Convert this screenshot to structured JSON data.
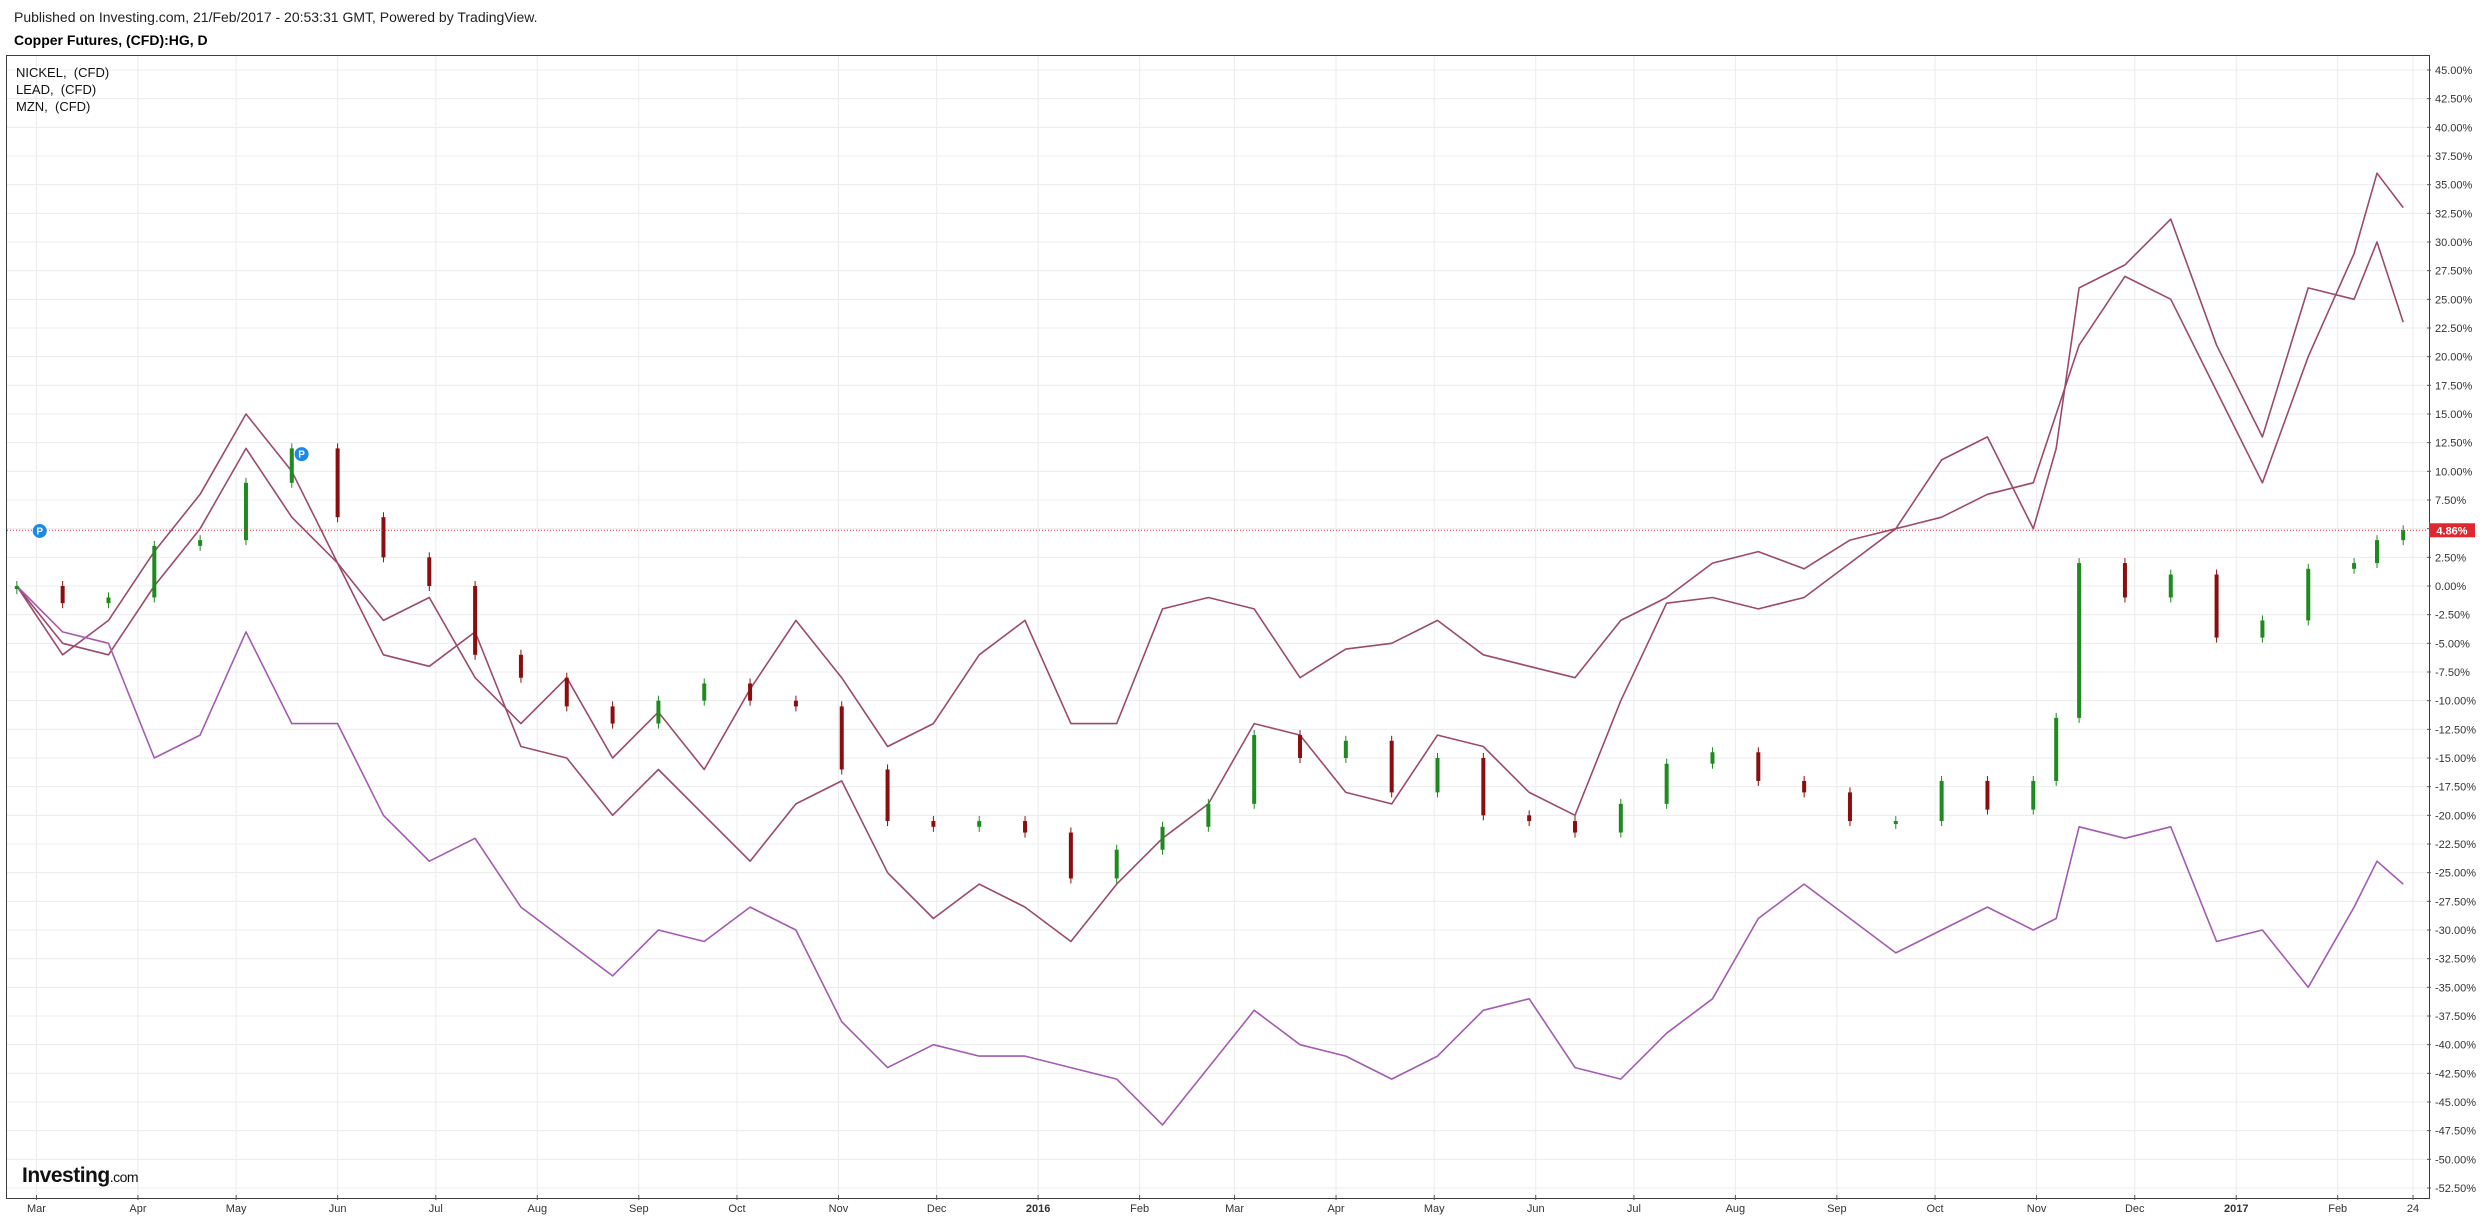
{
  "header": {
    "published": "Published on Investing.com, 21/Feb/2017 - 20:53:31 GMT, Powered by TradingView.",
    "symbol": "Copper Futures, (CFD):HG, D"
  },
  "legend": [
    "NICKEL,  (CFD)",
    "LEAD,  (CFD)",
    "MZN,  (CFD)"
  ],
  "logo": {
    "main": "Investing",
    "suffix": ".com"
  },
  "colors": {
    "nickel": "#9b4a6c",
    "lead": "#9b4a6c",
    "mzn": "#a35bb1",
    "candle_up": "#1f8a1f",
    "candle_down": "#8b0d0d",
    "price_line": "#e0262f",
    "grid": "#ececec"
  },
  "markers": [
    {
      "label": "P",
      "date": "2015-03-02",
      "value": 4.8
    },
    {
      "label": "P",
      "date": "2015-05-21",
      "value": 11.5
    }
  ],
  "chart_data": {
    "type": "line",
    "title": "Copper Futures, (CFD):HG, D",
    "y_unit": "%",
    "ylim": [
      -52.5,
      45.0
    ],
    "y_ticks": [
      "45.00%",
      "42.50%",
      "40.00%",
      "37.50%",
      "35.00%",
      "32.50%",
      "30.00%",
      "27.50%",
      "25.00%",
      "22.50%",
      "20.00%",
      "17.50%",
      "15.00%",
      "12.50%",
      "10.00%",
      "7.50%",
      "5.00%",
      "2.50%",
      "0.00%",
      "-2.50%",
      "-5.00%",
      "-7.50%",
      "-10.00%",
      "-12.50%",
      "-15.00%",
      "-17.50%",
      "-20.00%",
      "-22.50%",
      "-25.00%",
      "-27.50%",
      "-30.00%",
      "-32.50%",
      "-35.00%",
      "-37.50%",
      "-40.00%",
      "-42.50%",
      "-45.00%",
      "-47.50%",
      "-50.00%",
      "-52.50%"
    ],
    "x_ticks": [
      {
        "label": "Mar",
        "date": "2015-03-01"
      },
      {
        "label": "Apr",
        "date": "2015-04-01"
      },
      {
        "label": "May",
        "date": "2015-05-01"
      },
      {
        "label": "Jun",
        "date": "2015-06-01"
      },
      {
        "label": "Jul",
        "date": "2015-07-01"
      },
      {
        "label": "Aug",
        "date": "2015-08-01"
      },
      {
        "label": "Sep",
        "date": "2015-09-01"
      },
      {
        "label": "Oct",
        "date": "2015-10-01"
      },
      {
        "label": "Nov",
        "date": "2015-11-01"
      },
      {
        "label": "Dec",
        "date": "2015-12-01"
      },
      {
        "label": "2016",
        "date": "2016-01-01",
        "bold": true
      },
      {
        "label": "Feb",
        "date": "2016-02-01"
      },
      {
        "label": "Mar",
        "date": "2016-03-01"
      },
      {
        "label": "Apr",
        "date": "2016-04-01"
      },
      {
        "label": "May",
        "date": "2016-05-01"
      },
      {
        "label": "Jun",
        "date": "2016-06-01"
      },
      {
        "label": "Jul",
        "date": "2016-07-01"
      },
      {
        "label": "Aug",
        "date": "2016-08-01"
      },
      {
        "label": "Sep",
        "date": "2016-09-01"
      },
      {
        "label": "Oct",
        "date": "2016-10-01"
      },
      {
        "label": "Nov",
        "date": "2016-11-01"
      },
      {
        "label": "Dec",
        "date": "2016-12-01"
      },
      {
        "label": "2017",
        "date": "2017-01-01",
        "bold": true
      },
      {
        "label": "Feb",
        "date": "2017-02-01"
      },
      {
        "label": "24",
        "date": "2017-02-24"
      }
    ],
    "last_value_label": "4.86%",
    "last_value": 4.86,
    "grid": true,
    "legend_position": "top-left",
    "candles": {
      "name": "Copper Futures, (CFD):HG, D",
      "dates": [
        "2015-02-23",
        "2015-03-09",
        "2015-03-23",
        "2015-04-06",
        "2015-04-20",
        "2015-05-04",
        "2015-05-18",
        "2015-06-01",
        "2015-06-15",
        "2015-06-29",
        "2015-07-13",
        "2015-07-27",
        "2015-08-10",
        "2015-08-24",
        "2015-09-07",
        "2015-09-21",
        "2015-10-05",
        "2015-10-19",
        "2015-11-02",
        "2015-11-16",
        "2015-11-30",
        "2015-12-14",
        "2015-12-28",
        "2016-01-11",
        "2016-01-25",
        "2016-02-08",
        "2016-02-22",
        "2016-03-07",
        "2016-03-21",
        "2016-04-04",
        "2016-04-18",
        "2016-05-02",
        "2016-05-16",
        "2016-05-30",
        "2016-06-13",
        "2016-06-27",
        "2016-07-11",
        "2016-07-25",
        "2016-08-08",
        "2016-08-22",
        "2016-09-05",
        "2016-09-19",
        "2016-10-03",
        "2016-10-17",
        "2016-10-31",
        "2016-11-07",
        "2016-11-14",
        "2016-11-28",
        "2016-12-12",
        "2016-12-26",
        "2017-01-09",
        "2017-01-23",
        "2017-02-06",
        "2017-02-13",
        "2017-02-21"
      ],
      "values": [
        0.0,
        -1.5,
        -1.0,
        3.5,
        4.0,
        9.0,
        12.0,
        6.0,
        2.5,
        0.0,
        -6.0,
        -8.0,
        -10.5,
        -12.0,
        -10.0,
        -8.5,
        -10.0,
        -10.5,
        -16.0,
        -20.5,
        -21.0,
        -20.5,
        -21.5,
        -25.5,
        -23.0,
        -21.0,
        -19.0,
        -13.0,
        -15.0,
        -13.5,
        -18.0,
        -15.0,
        -20.0,
        -20.5,
        -21.5,
        -19.0,
        -15.5,
        -14.5,
        -17.0,
        -18.0,
        -20.5,
        -20.5,
        -17.0,
        -19.5,
        -17.0,
        -11.5,
        2.0,
        -1.0,
        1.0,
        -4.5,
        -3.0,
        1.5,
        2.0,
        4.0,
        4.86
      ]
    },
    "series": [
      {
        "name": "NICKEL",
        "dates": [
          "2015-02-23",
          "2015-03-09",
          "2015-03-23",
          "2015-04-06",
          "2015-04-20",
          "2015-05-04",
          "2015-05-18",
          "2015-06-01",
          "2015-06-15",
          "2015-06-29",
          "2015-07-13",
          "2015-07-27",
          "2015-08-10",
          "2015-08-24",
          "2015-09-07",
          "2015-09-21",
          "2015-10-05",
          "2015-10-19",
          "2015-11-02",
          "2015-11-16",
          "2015-11-30",
          "2015-12-14",
          "2015-12-28",
          "2016-01-11",
          "2016-01-25",
          "2016-02-08",
          "2016-02-22",
          "2016-03-07",
          "2016-03-21",
          "2016-04-04",
          "2016-04-18",
          "2016-05-02",
          "2016-05-16",
          "2016-05-30",
          "2016-06-13",
          "2016-06-27",
          "2016-07-11",
          "2016-07-25",
          "2016-08-08",
          "2016-08-22",
          "2016-09-05",
          "2016-09-19",
          "2016-10-03",
          "2016-10-17",
          "2016-10-31",
          "2016-11-07",
          "2016-11-14",
          "2016-11-28",
          "2016-12-12",
          "2016-12-26",
          "2017-01-09",
          "2017-01-23",
          "2017-02-06",
          "2017-02-13",
          "2017-02-21"
        ],
        "values": [
          0.0,
          -6.0,
          -3.0,
          3.0,
          8.0,
          15.0,
          10.0,
          2.0,
          -3.0,
          -1.0,
          -8.0,
          -12.0,
          -8.0,
          -15.0,
          -11.0,
          -16.0,
          -9.0,
          -3.0,
          -8.0,
          -14.0,
          -12.0,
          -6.0,
          -3.0,
          -12.0,
          -12.0,
          -2.0,
          -1.0,
          -2.0,
          -8.0,
          -5.5,
          -5.0,
          -3.0,
          -6.0,
          -7.0,
          -8.0,
          -3.0,
          -1.0,
          2.0,
          3.0,
          1.5,
          4.0,
          5.0,
          6.0,
          8.0,
          9.0,
          15.0,
          21.0,
          27.0,
          25.0,
          17.0,
          9.0,
          20.0,
          29.0,
          36.0,
          33.0
        ]
      },
      {
        "name": "LEAD",
        "dates": [
          "2015-02-23",
          "2015-03-09",
          "2015-03-23",
          "2015-04-06",
          "2015-04-20",
          "2015-05-04",
          "2015-05-18",
          "2015-06-01",
          "2015-06-15",
          "2015-06-29",
          "2015-07-13",
          "2015-07-27",
          "2015-08-10",
          "2015-08-24",
          "2015-09-07",
          "2015-09-21",
          "2015-10-05",
          "2015-10-19",
          "2015-11-02",
          "2015-11-16",
          "2015-11-30",
          "2015-12-14",
          "2015-12-28",
          "2016-01-11",
          "2016-01-25",
          "2016-02-08",
          "2016-02-22",
          "2016-03-07",
          "2016-03-21",
          "2016-04-04",
          "2016-04-18",
          "2016-05-02",
          "2016-05-16",
          "2016-05-30",
          "2016-06-13",
          "2016-06-27",
          "2016-07-11",
          "2016-07-25",
          "2016-08-08",
          "2016-08-22",
          "2016-09-05",
          "2016-09-19",
          "2016-10-03",
          "2016-10-17",
          "2016-10-31",
          "2016-11-07",
          "2016-11-14",
          "2016-11-28",
          "2016-12-12",
          "2016-12-26",
          "2017-01-09",
          "2017-01-23",
          "2017-02-06",
          "2017-02-13",
          "2017-02-21"
        ],
        "values": [
          0.0,
          -5.0,
          -6.0,
          0.0,
          5.0,
          12.0,
          6.0,
          2.0,
          -6.0,
          -7.0,
          -4.0,
          -14.0,
          -15.0,
          -20.0,
          -16.0,
          -20.0,
          -24.0,
          -19.0,
          -17.0,
          -25.0,
          -29.0,
          -26.0,
          -28.0,
          -31.0,
          -26.0,
          -22.0,
          -19.0,
          -12.0,
          -13.0,
          -18.0,
          -19.0,
          -13.0,
          -14.0,
          -18.0,
          -20.0,
          -10.0,
          -1.5,
          -1.0,
          -2.0,
          -1.0,
          2.0,
          5.0,
          11.0,
          13.0,
          5.0,
          12.0,
          26.0,
          28.0,
          32.0,
          21.0,
          13.0,
          26.0,
          25.0,
          30.0,
          23.0
        ]
      },
      {
        "name": "MZN",
        "dates": [
          "2015-02-23",
          "2015-03-09",
          "2015-03-23",
          "2015-04-06",
          "2015-04-20",
          "2015-05-04",
          "2015-05-18",
          "2015-06-01",
          "2015-06-15",
          "2015-06-29",
          "2015-07-13",
          "2015-07-27",
          "2015-08-10",
          "2015-08-24",
          "2015-09-07",
          "2015-09-21",
          "2015-10-05",
          "2015-10-19",
          "2015-11-02",
          "2015-11-16",
          "2015-11-30",
          "2015-12-14",
          "2015-12-28",
          "2016-01-11",
          "2016-01-25",
          "2016-02-08",
          "2016-02-22",
          "2016-03-07",
          "2016-03-21",
          "2016-04-04",
          "2016-04-18",
          "2016-05-02",
          "2016-05-16",
          "2016-05-30",
          "2016-06-13",
          "2016-06-27",
          "2016-07-11",
          "2016-07-25",
          "2016-08-08",
          "2016-08-22",
          "2016-09-05",
          "2016-09-19",
          "2016-10-03",
          "2016-10-17",
          "2016-10-31",
          "2016-11-07",
          "2016-11-14",
          "2016-11-28",
          "2016-12-12",
          "2016-12-26",
          "2017-01-09",
          "2017-01-23",
          "2017-02-06",
          "2017-02-13",
          "2017-02-21"
        ],
        "values": [
          0.0,
          -4.0,
          -5.0,
          -15.0,
          -13.0,
          -4.0,
          -12.0,
          -12.0,
          -20.0,
          -24.0,
          -22.0,
          -28.0,
          -31.0,
          -34.0,
          -30.0,
          -31.0,
          -28.0,
          -30.0,
          -38.0,
          -42.0,
          -40.0,
          -41.0,
          -41.0,
          -42.0,
          -43.0,
          -47.0,
          -42.0,
          -37.0,
          -40.0,
          -41.0,
          -43.0,
          -41.0,
          -37.0,
          -36.0,
          -42.0,
          -43.0,
          -39.0,
          -36.0,
          -29.0,
          -26.0,
          -29.0,
          -32.0,
          -30.0,
          -28.0,
          -30.0,
          -29.0,
          -21.0,
          -22.0,
          -21.0,
          -31.0,
          -30.0,
          -35.0,
          -28.0,
          -24.0,
          -26.0
        ]
      }
    ]
  }
}
